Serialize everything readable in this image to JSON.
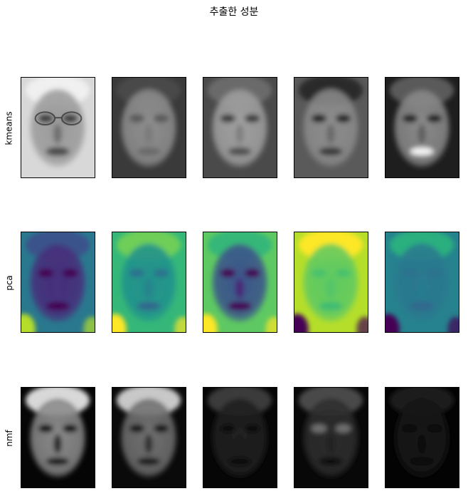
{
  "chart_data": {
    "type": "image_grid",
    "title": "추출한 성분",
    "rows": [
      {
        "label": "kmeans",
        "colormap": "gray",
        "panels": [
          {
            "bg": "#d8d8d8",
            "face": "#9a9a9a",
            "hair": "#f0f0f0",
            "eyes": "#3a3a3a",
            "mouth": "#4a4a4a",
            "nose": "#707070",
            "glasses": true
          },
          {
            "bg": "#3a3a3a",
            "face": "#8e8e8e",
            "hair": "#4a4a4a",
            "eyes": "#5a5a5a",
            "mouth": "#6a6a6a",
            "nose": "#7a7a7a",
            "glasses": false
          },
          {
            "bg": "#4a4a4a",
            "face": "#a0a0a0",
            "hair": "#6a6a6a",
            "eyes": "#3c3c3c",
            "mouth": "#505050",
            "nose": "#808080",
            "glasses": false
          },
          {
            "bg": "#5a5a5a",
            "face": "#8c8c8c",
            "hair": "#2a2a2a",
            "eyes": "#252525",
            "mouth": "#3a3a3a",
            "nose": "#6a6a6a",
            "glasses": false
          },
          {
            "bg": "#1e1e1e",
            "face": "#8a8a8a",
            "hair": "#5a5a5a",
            "eyes": "#222222",
            "mouth": "#f2f2f2",
            "nose": "#606060",
            "glasses": false
          }
        ]
      },
      {
        "label": "pca",
        "colormap": "viridis",
        "panels": [
          {
            "bg": "#2a788e",
            "face": "#472d7b",
            "hair": "#3b528b",
            "eyes": "#440154",
            "mouth": "#440154",
            "nose": "#46327e",
            "corner": "#b5de2b",
            "glasses": false
          },
          {
            "bg": "#35b779",
            "face": "#21918c",
            "hair": "#6ece58",
            "eyes": "#2c728e",
            "mouth": "#31688e",
            "nose": "#26828e",
            "corner": "#fde725",
            "glasses": false
          },
          {
            "bg": "#5ec962",
            "face": "#3b528b",
            "hair": "#35b779",
            "eyes": "#440154",
            "mouth": "#440154",
            "nose": "#482878",
            "corner": "#fde725",
            "glasses": false
          },
          {
            "bg": "#b5de2b",
            "face": "#5ec962",
            "hair": "#fde725",
            "eyes": "#4ac16d",
            "mouth": "#3fbc73",
            "nose": "#52c569",
            "corner": "#440154",
            "glasses": false
          },
          {
            "bg": "#26828e",
            "face": "#2a788e",
            "hair": "#29af7f",
            "eyes": "#2c728e",
            "mouth": "#31688e",
            "nose": "#287d8e",
            "corner": "#440154",
            "glasses": false
          }
        ]
      },
      {
        "label": "nmf",
        "colormap": "gray",
        "panels": [
          {
            "bg": "#050505",
            "face": "#8a8a8a",
            "hair": "#d8d8d8",
            "eyes": "#101010",
            "mouth": "#1a1a1a",
            "nose": "#2a2a2a",
            "glasses": false
          },
          {
            "bg": "#0a0a0a",
            "face": "#707070",
            "hair": "#c8c8c8",
            "eyes": "#151515",
            "mouth": "#1e1e1e",
            "nose": "#303030",
            "glasses": false
          },
          {
            "bg": "#060606",
            "face": "#202020",
            "hair": "#3a3a3a",
            "eyes": "#0a0a0a",
            "mouth": "#0c0c0c",
            "nose": "#1a1a1a",
            "glasses": false
          },
          {
            "bg": "#080808",
            "face": "#2c2c2c",
            "hair": "#484848",
            "eyes": "#707070",
            "mouth": "#101010",
            "nose": "#202020",
            "glasses": false
          },
          {
            "bg": "#030303",
            "face": "#141414",
            "hair": "#1a1a1a",
            "eyes": "#080808",
            "mouth": "#0a0a0a",
            "nose": "#101010",
            "glasses": false
          }
        ]
      }
    ]
  }
}
